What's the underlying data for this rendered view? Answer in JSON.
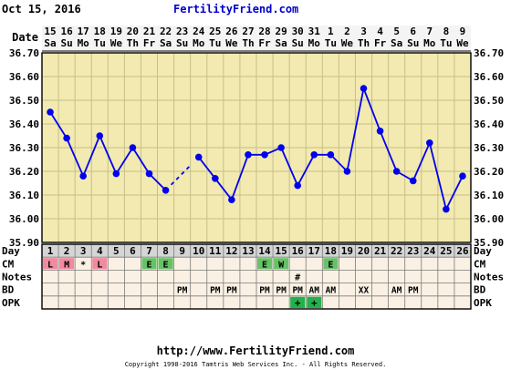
{
  "header": {
    "date": "Oct 15, 2016",
    "site": "FertilityFriend.com"
  },
  "footer": {
    "url": "http://www.FertilityFriend.com",
    "copyright": "Copyright 1998-2016 Tamtris Web Services Inc. - All Rights Reserved."
  },
  "colors": {
    "frame": "#000000",
    "plot_bg": "#f2eab0",
    "grid": "#c7bf8a",
    "line": "#0000ee",
    "point": "#0000ee",
    "date_fill": "#f4f4f4",
    "dayrow_fill": "#d5d5d5",
    "cell_fill": "#faf1e4",
    "cm_pink": "#f08aa0",
    "cm_green": "#66c266",
    "opk_green": "#22b14c",
    "site_blue": "#0000cc"
  },
  "labels": {
    "date": "Date",
    "day": "Day",
    "cm": "CM",
    "notes": "Notes",
    "bd": "BD",
    "opk": "OPK"
  },
  "chart_data": {
    "type": "line",
    "title": "",
    "ylim": [
      35.9,
      36.7
    ],
    "y_ticks": [
      "35.90",
      "36.00",
      "36.10",
      "36.20",
      "36.30",
      "36.40",
      "36.50",
      "36.60",
      "36.70"
    ],
    "grid": true,
    "days": [
      "1",
      "2",
      "3",
      "4",
      "5",
      "6",
      "7",
      "8",
      "9",
      "10",
      "11",
      "12",
      "13",
      "14",
      "15",
      "16",
      "17",
      "18",
      "19",
      "20",
      "21",
      "22",
      "23",
      "24",
      "25",
      "26"
    ],
    "dates": [
      "15",
      "16",
      "17",
      "18",
      "19",
      "20",
      "21",
      "22",
      "23",
      "24",
      "25",
      "26",
      "27",
      "28",
      "29",
      "30",
      "31",
      "1",
      "2",
      "3",
      "4",
      "5",
      "6",
      "7",
      "8",
      "9"
    ],
    "weekdays": [
      "Sa",
      "Su",
      "Mo",
      "Tu",
      "We",
      "Th",
      "Fr",
      "Sa",
      "Su",
      "Mo",
      "Tu",
      "We",
      "Th",
      "Fr",
      "Sa",
      "Su",
      "Mo",
      "Tu",
      "We",
      "Th",
      "Fr",
      "Sa",
      "Su",
      "Mo",
      "Tu",
      "We"
    ],
    "temps": [
      36.45,
      36.34,
      36.18,
      36.35,
      36.19,
      36.3,
      36.19,
      36.12,
      null,
      36.26,
      36.17,
      36.08,
      36.27,
      36.27,
      36.3,
      36.14,
      36.27,
      36.27,
      36.2,
      36.55,
      36.37,
      36.2,
      36.16,
      36.32,
      36.04,
      36.18
    ],
    "cm": [
      "L",
      "M",
      "*",
      "L",
      "",
      "",
      "E",
      "E",
      "",
      "",
      "",
      "",
      "",
      "E",
      "W",
      "",
      "",
      "E",
      "",
      "",
      "",
      "",
      "",
      "",
      "",
      ""
    ],
    "notes": [
      "",
      "",
      "",
      "",
      "",
      "",
      "",
      "",
      "",
      "",
      "",
      "",
      "",
      "",
      "",
      "#",
      "",
      "",
      "",
      "",
      "",
      "",
      "",
      "",
      "",
      ""
    ],
    "bd": [
      "",
      "",
      "",
      "",
      "",
      "",
      "",
      "",
      "PM",
      "",
      "PM",
      "PM",
      "",
      "PM",
      "PM",
      "PM",
      "AM",
      "AM",
      "",
      "XX",
      "",
      "AM",
      "PM",
      "",
      "",
      ""
    ],
    "opk": [
      "",
      "",
      "",
      "",
      "",
      "",
      "",
      "",
      "",
      "",
      "",
      "",
      "",
      "",
      "",
      "+",
      "+",
      "",
      "",
      "",
      "",
      "",
      "",
      "",
      "",
      ""
    ]
  }
}
